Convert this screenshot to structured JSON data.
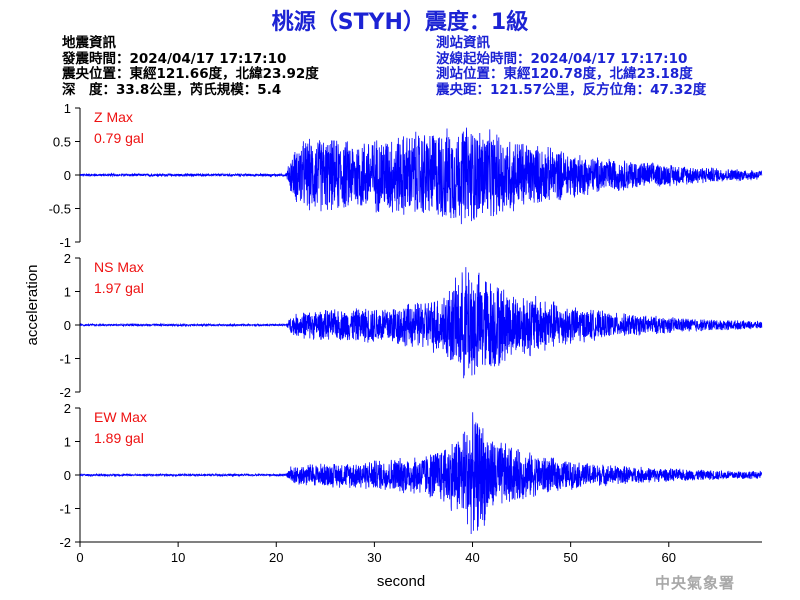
{
  "title": "桃源（STYH）震度：1級",
  "quake_info": {
    "heading": "地震資訊",
    "origin_time": "發震時間：2024/04/17 17:17:10",
    "epicenter": "震央位置：東經121.66度，北緯23.92度",
    "depth_magnitude": "深　度：33.8公里，芮氏規模：5.4"
  },
  "station_info": {
    "heading": "測站資訊",
    "wave_start": "波線起始時間：2024/04/17 17:17:10",
    "station_location": "測站位置：東經120.78度，北緯23.18度",
    "distance_azimuth": "震央距：121.57公里，反方位角：47.32度"
  },
  "watermark": "中央氣象署",
  "trace_color": "#0000ff",
  "label_color": "#ee1111",
  "chart_data": {
    "type": "line",
    "xlabel": "second",
    "ylabel": "acceleration",
    "xlim": [
      0,
      69.5
    ],
    "xticks": [
      0,
      10,
      20,
      30,
      40,
      50,
      60
    ],
    "grid": false,
    "series": [
      {
        "name": "Z Max",
        "max_label": "0.79 gal",
        "max": 0.79,
        "ylim": [
          -1,
          1
        ],
        "yticks": [
          1,
          0.5,
          0,
          -0.5,
          -1
        ],
        "envelope": [
          [
            0,
            0.02
          ],
          [
            21,
            0.02
          ],
          [
            21.5,
            0.3
          ],
          [
            22.5,
            0.55
          ],
          [
            24,
            0.6
          ],
          [
            28,
            0.55
          ],
          [
            31,
            0.62
          ],
          [
            35,
            0.7
          ],
          [
            38,
            0.75
          ],
          [
            39.5,
            0.79
          ],
          [
            41,
            0.72
          ],
          [
            43,
            0.65
          ],
          [
            46,
            0.5
          ],
          [
            49,
            0.4
          ],
          [
            52,
            0.3
          ],
          [
            55,
            0.25
          ],
          [
            58,
            0.2
          ],
          [
            62,
            0.15
          ],
          [
            66,
            0.1
          ],
          [
            69.5,
            0.08
          ]
        ]
      },
      {
        "name": "NS Max",
        "max_label": "1.97 gal",
        "max": 1.97,
        "ylim": [
          -2,
          2
        ],
        "yticks": [
          2,
          1,
          0,
          -1,
          -2
        ],
        "envelope": [
          [
            0,
            0.03
          ],
          [
            21,
            0.03
          ],
          [
            21.5,
            0.3
          ],
          [
            23,
            0.45
          ],
          [
            27,
            0.5
          ],
          [
            31,
            0.6
          ],
          [
            35,
            0.75
          ],
          [
            37,
            1.0
          ],
          [
            38.5,
            1.5
          ],
          [
            39.5,
            1.97
          ],
          [
            41,
            1.6
          ],
          [
            42.5,
            1.4
          ],
          [
            44,
            1.0
          ],
          [
            46,
            1.0
          ],
          [
            48,
            0.8
          ],
          [
            50,
            0.6
          ],
          [
            54,
            0.4
          ],
          [
            58,
            0.3
          ],
          [
            62,
            0.22
          ],
          [
            66,
            0.16
          ],
          [
            69.5,
            0.12
          ]
        ]
      },
      {
        "name": "EW Max",
        "max_label": "1.89 gal",
        "max": 1.89,
        "ylim": [
          -2,
          2
        ],
        "yticks": [
          2,
          1,
          0,
          -1,
          -2
        ],
        "envelope": [
          [
            0,
            0.03
          ],
          [
            21,
            0.03
          ],
          [
            21.5,
            0.3
          ],
          [
            23,
            0.35
          ],
          [
            27,
            0.4
          ],
          [
            31,
            0.5
          ],
          [
            35,
            0.65
          ],
          [
            37,
            0.9
          ],
          [
            38.5,
            1.3
          ],
          [
            40,
            1.89
          ],
          [
            41,
            1.7
          ],
          [
            42,
            1.2
          ],
          [
            44,
            0.9
          ],
          [
            46,
            0.7
          ],
          [
            48,
            0.55
          ],
          [
            51,
            0.4
          ],
          [
            55,
            0.3
          ],
          [
            59,
            0.22
          ],
          [
            64,
            0.16
          ],
          [
            69.5,
            0.12
          ]
        ]
      }
    ]
  }
}
